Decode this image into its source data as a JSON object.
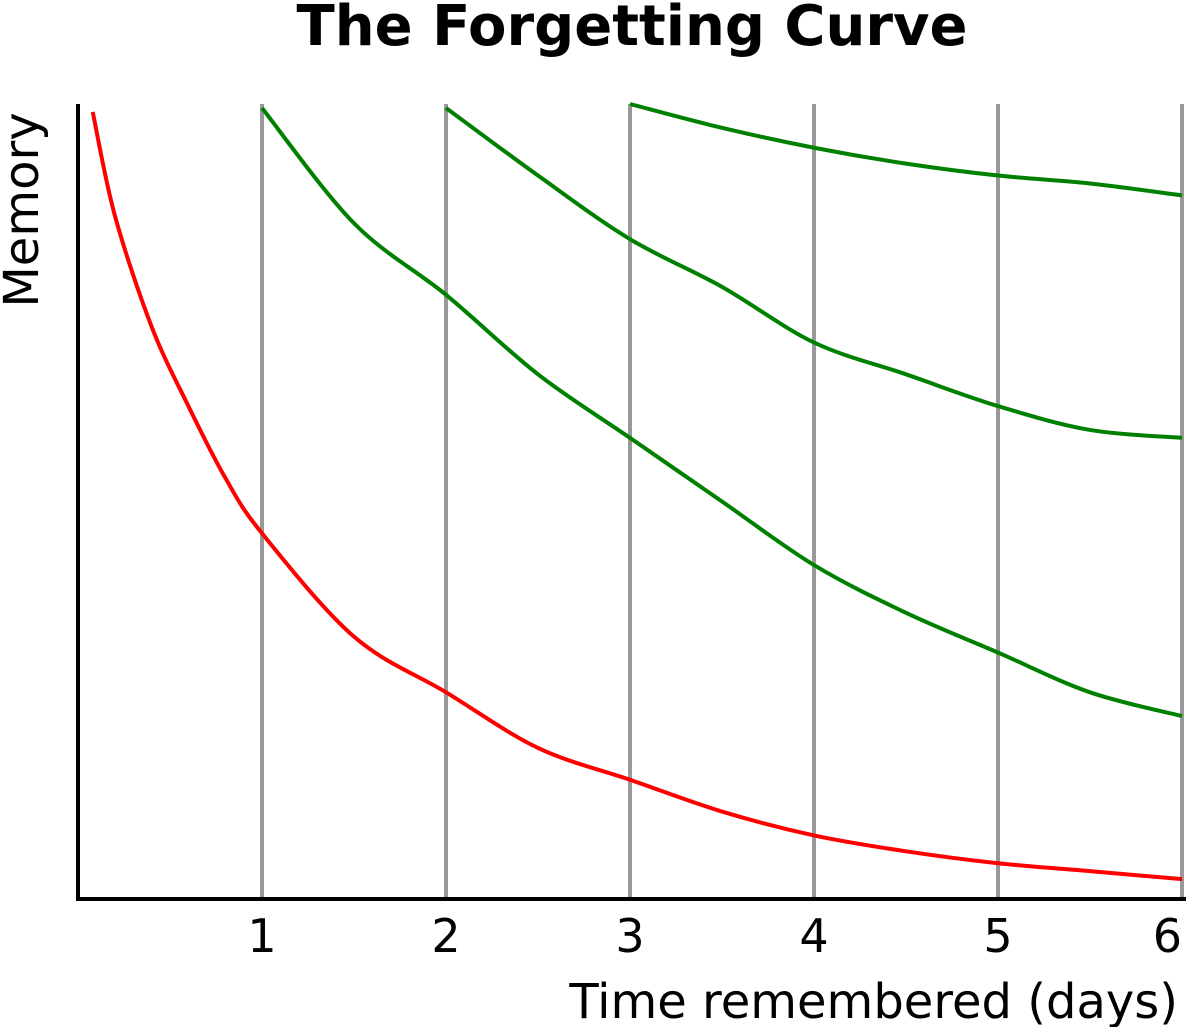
{
  "chart_data": {
    "type": "line",
    "title": "The Forgetting Curve",
    "xlabel": "Time remembered (days)",
    "ylabel": "Memory",
    "xlim": [
      0,
      6
    ],
    "ylim": [
      0,
      1
    ],
    "xticks": [
      "1",
      "2",
      "3",
      "4",
      "5",
      "6"
    ],
    "grid": "vertical lines at each day",
    "colors": {
      "initial": "#ff0000",
      "review": "#008000",
      "grid": "#999999",
      "axis": "#000000"
    },
    "series": [
      {
        "role": "initial",
        "color": "#ff0000",
        "x": [
          0.08,
          0.2,
          0.4,
          0.6,
          0.8,
          1,
          1.5,
          2,
          2.5,
          3,
          3.5,
          4,
          4.5,
          5,
          5.5,
          6
        ],
        "y": [
          0.99,
          0.86,
          0.72,
          0.62,
          0.53,
          0.46,
          0.33,
          0.26,
          0.19,
          0.15,
          0.11,
          0.08,
          0.06,
          0.045,
          0.035,
          0.025
        ]
      },
      {
        "role": "review",
        "color": "#008000",
        "x": [
          1,
          1.5,
          2,
          2.5,
          3,
          3.5,
          4,
          4.5,
          5,
          5.5,
          6
        ],
        "y": [
          0.995,
          0.85,
          0.76,
          0.66,
          0.58,
          0.5,
          0.42,
          0.36,
          0.31,
          0.26,
          0.23
        ]
      },
      {
        "role": "review",
        "color": "#008000",
        "x": [
          2,
          2.5,
          3,
          3.5,
          4,
          4.5,
          5,
          5.5,
          6
        ],
        "y": [
          0.995,
          0.91,
          0.83,
          0.77,
          0.7,
          0.66,
          0.62,
          0.59,
          0.58
        ]
      },
      {
        "role": "review",
        "color": "#008000",
        "x": [
          3,
          3.5,
          4,
          4.5,
          5,
          5.5,
          6
        ],
        "y": [
          1.0,
          0.97,
          0.945,
          0.925,
          0.91,
          0.9,
          0.885
        ]
      }
    ]
  }
}
